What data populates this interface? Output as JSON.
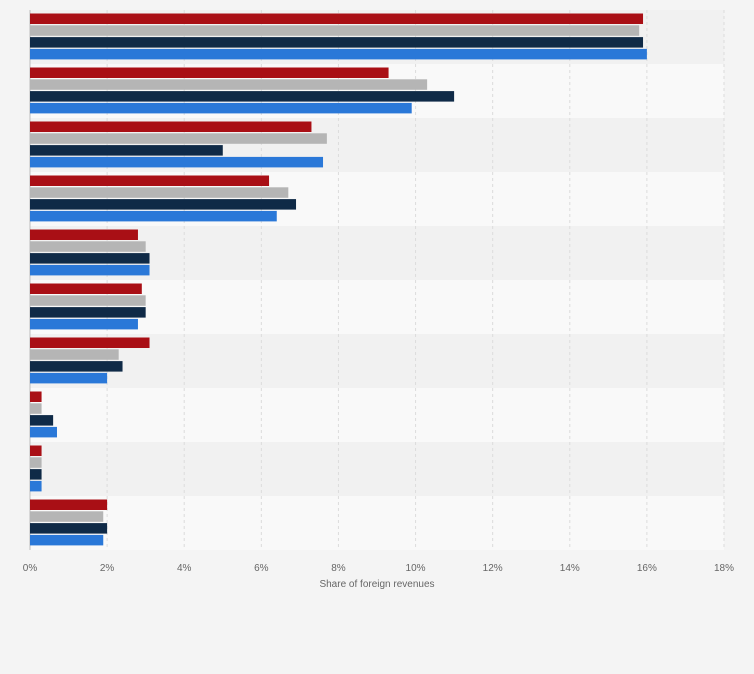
{
  "chart_data": {
    "type": "bar",
    "orientation": "horizontal",
    "categories": [
      "",
      "",
      "",
      "",
      "",
      "",
      "",
      "",
      "",
      ""
    ],
    "series": [
      {
        "color": "#a90f15",
        "values": [
          15.9,
          9.3,
          7.3,
          6.2,
          2.8,
          2.9,
          3.1,
          0.3,
          0.3,
          2.0
        ]
      },
      {
        "color": "#b5b5b5",
        "values": [
          15.8,
          10.3,
          7.7,
          6.7,
          3.0,
          3.0,
          2.3,
          0.3,
          0.3,
          1.9
        ]
      },
      {
        "color": "#0f2a47",
        "values": [
          15.9,
          11.0,
          5.0,
          6.9,
          3.1,
          3.0,
          2.4,
          0.6,
          0.3,
          2.0
        ]
      },
      {
        "color": "#2a78d8",
        "values": [
          16.0,
          9.9,
          7.6,
          6.4,
          3.1,
          2.8,
          2.0,
          0.7,
          0.3,
          1.9
        ]
      }
    ],
    "xlim": [
      0,
      18
    ],
    "x_ticks": [
      "0%",
      "2%",
      "4%",
      "6%",
      "8%",
      "10%",
      "12%",
      "14%",
      "16%",
      "18%"
    ],
    "xlabel": "Share of foreign revenues",
    "grid": true,
    "legend": "none"
  }
}
